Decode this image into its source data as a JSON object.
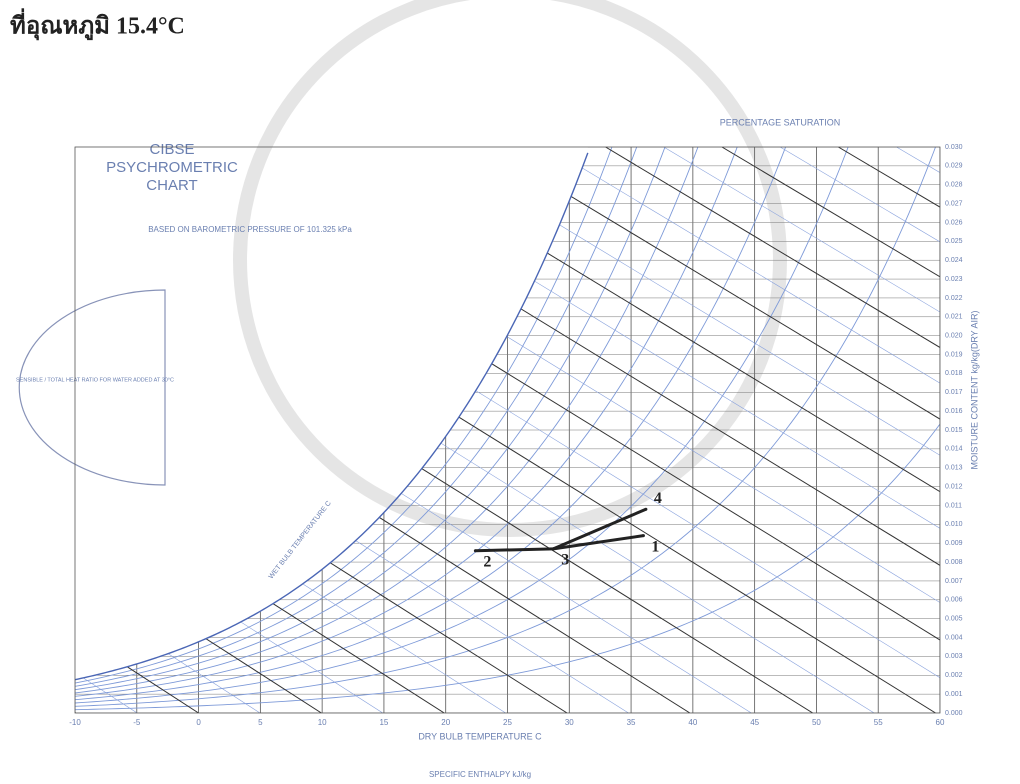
{
  "heading": "ที่อุณหภูมิ 15.4°C",
  "chart_data": {
    "type": "psychrometric",
    "title": [
      "CIBSE",
      "PSYCHROMETRIC",
      "CHART"
    ],
    "subtitle": "BASED ON BAROMETRIC PRESSURE OF 101.325 kPa",
    "saturation_label": "PERCENTAGE SATURATION",
    "xlabel": "DRY BULB TEMPERATURE C",
    "ylabel": "MOISTURE CONTENT kg/kg(DRY AIR)",
    "enthalpy_label": "SPECIFIC ENTHALPY kJ/kg",
    "wet_bulb_label": "WET BULB TEMPERATURE C",
    "protractor_label": "SENSIBLE / TOTAL HEAT RATIO FOR WATER ADDED AT 30°C",
    "xlim": [
      -10,
      60
    ],
    "ylim": [
      0,
      0.03
    ],
    "xticks": [
      -10,
      -5,
      0,
      5,
      10,
      15,
      20,
      25,
      30,
      35,
      40,
      45,
      50,
      55,
      60
    ],
    "yticks": [
      {
        "value": 0,
        "label": "0.000"
      },
      {
        "value": 0.001,
        "label": "0.001"
      },
      {
        "value": 0.002,
        "label": "0.002"
      },
      {
        "value": 0.003,
        "label": "0.003"
      },
      {
        "value": 0.004,
        "label": "0.004"
      },
      {
        "value": 0.005,
        "label": "0.005"
      },
      {
        "value": 0.006,
        "label": "0.006"
      },
      {
        "value": 0.007,
        "label": "0.007"
      },
      {
        "value": 0.008,
        "label": "0.008"
      },
      {
        "value": 0.009,
        "label": "0.009"
      },
      {
        "value": 0.01,
        "label": "0.010"
      },
      {
        "value": 0.011,
        "label": "0.011"
      },
      {
        "value": 0.012,
        "label": "0.012"
      },
      {
        "value": 0.013,
        "label": "0.013"
      },
      {
        "value": 0.014,
        "label": "0.014"
      },
      {
        "value": 0.015,
        "label": "0.015"
      },
      {
        "value": 0.016,
        "label": "0.016"
      },
      {
        "value": 0.017,
        "label": "0.017"
      },
      {
        "value": 0.018,
        "label": "0.018"
      },
      {
        "value": 0.019,
        "label": "0.019"
      },
      {
        "value": 0.02,
        "label": "0.020"
      },
      {
        "value": 0.021,
        "label": "0.021"
      },
      {
        "value": 0.022,
        "label": "0.022"
      },
      {
        "value": 0.023,
        "label": "0.023"
      },
      {
        "value": 0.024,
        "label": "0.024"
      },
      {
        "value": 0.025,
        "label": "0.025"
      },
      {
        "value": 0.026,
        "label": "0.026"
      },
      {
        "value": 0.027,
        "label": "0.027"
      },
      {
        "value": 0.028,
        "label": "0.028"
      },
      {
        "value": 0.029,
        "label": "0.029"
      },
      {
        "value": 0.03,
        "label": "0.030"
      }
    ],
    "grid": true,
    "line_color": "#222222",
    "points": [
      {
        "label": "1",
        "x": 36,
        "y": 0.0094
      },
      {
        "label": "2",
        "x": 22.4,
        "y": 0.0086
      },
      {
        "label": "3",
        "x": 28.7,
        "y": 0.0087
      },
      {
        "label": "4",
        "x": 36.2,
        "y": 0.0108
      }
    ]
  }
}
